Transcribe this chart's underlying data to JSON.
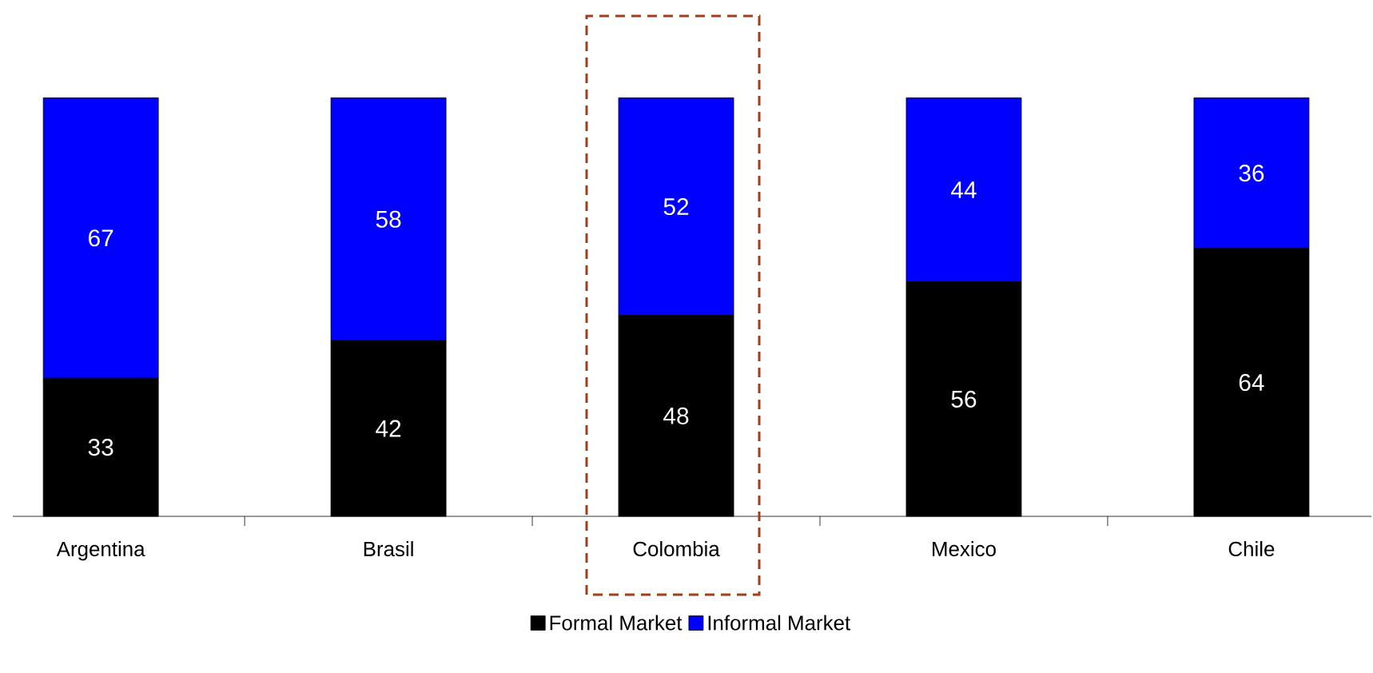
{
  "chart_data": {
    "type": "bar",
    "stacked": true,
    "data_labels": true,
    "legend": "bottom",
    "categories": [
      "Argentina",
      "Brasil",
      "Colombia",
      "Mexico",
      "Chile"
    ],
    "series": [
      {
        "name": "Formal Market",
        "color": "#000000",
        "values": [
          33,
          42,
          48,
          56,
          64
        ]
      },
      {
        "name": "Informal Market",
        "color": "#0000ff",
        "values": [
          67,
          58,
          52,
          44,
          36
        ]
      }
    ]
  }
}
